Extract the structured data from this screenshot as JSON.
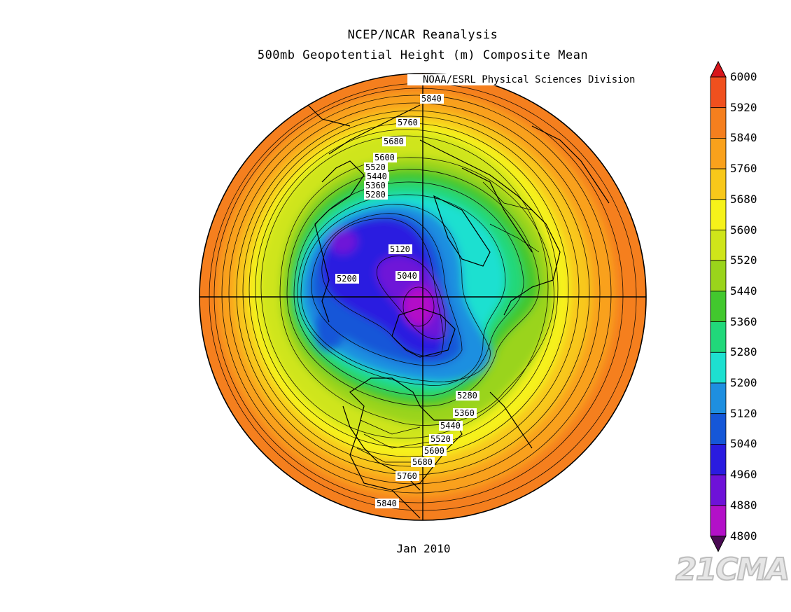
{
  "title": "NCEP/NCAR Reanalysis",
  "subtitle": "500mb Geopotential Height (m) Composite Mean",
  "credit": "NOAA/ESRL Physical Sciences Division",
  "date_label": "Jan 2010",
  "watermark": "21CMA",
  "colorbar": {
    "min": 4800,
    "max": 6000,
    "step": 80,
    "labels": [
      "6000",
      "5920",
      "5840",
      "5760",
      "5680",
      "5600",
      "5520",
      "5440",
      "5360",
      "5280",
      "5200",
      "5120",
      "5040",
      "4960",
      "4880",
      "4800"
    ],
    "colors": [
      "#d7151b",
      "#f0501e",
      "#f57f1e",
      "#f9a11c",
      "#f8c81a",
      "#f6f21a",
      "#cfe51a",
      "#9ad41b",
      "#42c82e",
      "#21d87a",
      "#1de0d0",
      "#1e8fe0",
      "#1557d8",
      "#2a1be0",
      "#6e12d8",
      "#b310c8",
      "#8a0c8c",
      "#4a0a54"
    ],
    "arrow_top_color": "#d7151b",
    "arrow_bottom_color": "#4a0a54"
  },
  "contour_labels": {
    "top": [
      "5840",
      "5760",
      "5680",
      "5600",
      "5520",
      "5440",
      "5360",
      "5280"
    ],
    "center": [
      "5120",
      "5200",
      "5040"
    ],
    "bottom": [
      "5280",
      "5360",
      "5440",
      "5520",
      "5600",
      "5680",
      "5760",
      "5840"
    ]
  }
}
